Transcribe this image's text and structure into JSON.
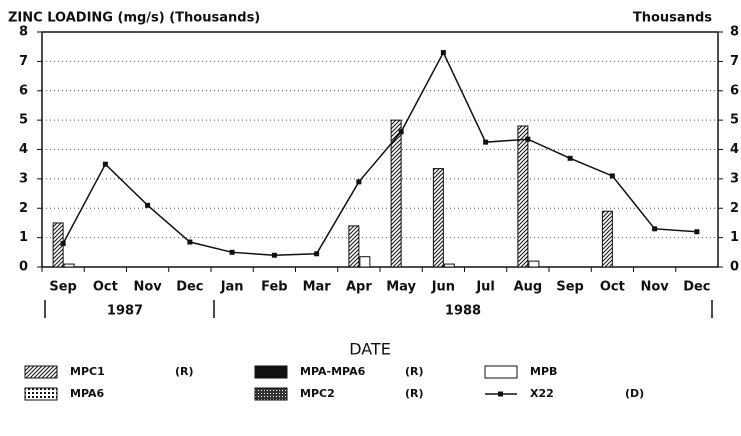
{
  "chart_data": {
    "type": "bar-line",
    "title": "ZINC LOADING (mg/s) (Thousands)",
    "y2_title": "Thousands",
    "x_label": "DATE",
    "categories": [
      "Sep",
      "Oct",
      "Nov",
      "Dec",
      "Jan",
      "Feb",
      "Mar",
      "Apr",
      "May",
      "Jun",
      "Jul",
      "Aug",
      "Sep",
      "Oct",
      "Nov",
      "Dec"
    ],
    "year_groups": [
      {
        "label": "1987",
        "span": [
          0,
          3
        ]
      },
      {
        "label": "1988",
        "span": [
          4,
          15
        ]
      }
    ],
    "ylim": [
      0,
      8
    ],
    "yticks": [
      0,
      1,
      2,
      3,
      4,
      5,
      6,
      7,
      8
    ],
    "y2lim": [
      0,
      8
    ],
    "y2ticks": [
      0,
      1,
      2,
      3,
      4,
      5,
      6,
      7,
      8
    ],
    "grid": true,
    "series": [
      {
        "name": "MPC1",
        "tag": "(R)",
        "kind": "bar",
        "fill": "hatch",
        "color": "#111111",
        "values": [
          1.5,
          null,
          null,
          null,
          null,
          null,
          null,
          1.4,
          5.0,
          3.35,
          null,
          4.8,
          null,
          1.9,
          null,
          null
        ]
      },
      {
        "name": "MPA-MPA6",
        "tag": "(R)",
        "kind": "bar",
        "fill": "solid",
        "color": "#111111",
        "values": [
          null,
          null,
          null,
          null,
          null,
          null,
          null,
          null,
          null,
          null,
          null,
          null,
          null,
          null,
          null,
          null
        ]
      },
      {
        "name": "MPB",
        "kind": "bar",
        "fill": "open",
        "color": "#111111",
        "values": [
          0.1,
          null,
          null,
          null,
          null,
          null,
          null,
          0.35,
          null,
          0.1,
          null,
          0.2,
          null,
          null,
          null,
          null
        ]
      },
      {
        "name": "MPA6",
        "kind": "bar",
        "fill": "grid",
        "color": "#111111",
        "values": [
          null,
          null,
          null,
          null,
          null,
          null,
          null,
          null,
          null,
          null,
          null,
          null,
          null,
          null,
          null,
          null
        ]
      },
      {
        "name": "MPC2",
        "tag": "(R)",
        "kind": "bar",
        "fill": "checker",
        "color": "#111111",
        "values": [
          null,
          null,
          null,
          null,
          null,
          null,
          null,
          null,
          null,
          null,
          null,
          null,
          null,
          null,
          null,
          null
        ]
      },
      {
        "name": "X22",
        "tag": "(D)",
        "kind": "line",
        "axis": "y2",
        "color": "#111111",
        "values": [
          0.8,
          3.5,
          2.1,
          0.85,
          0.5,
          0.4,
          0.45,
          2.9,
          4.6,
          7.3,
          4.25,
          4.35,
          3.7,
          3.1,
          1.3,
          1.2
        ]
      }
    ]
  }
}
